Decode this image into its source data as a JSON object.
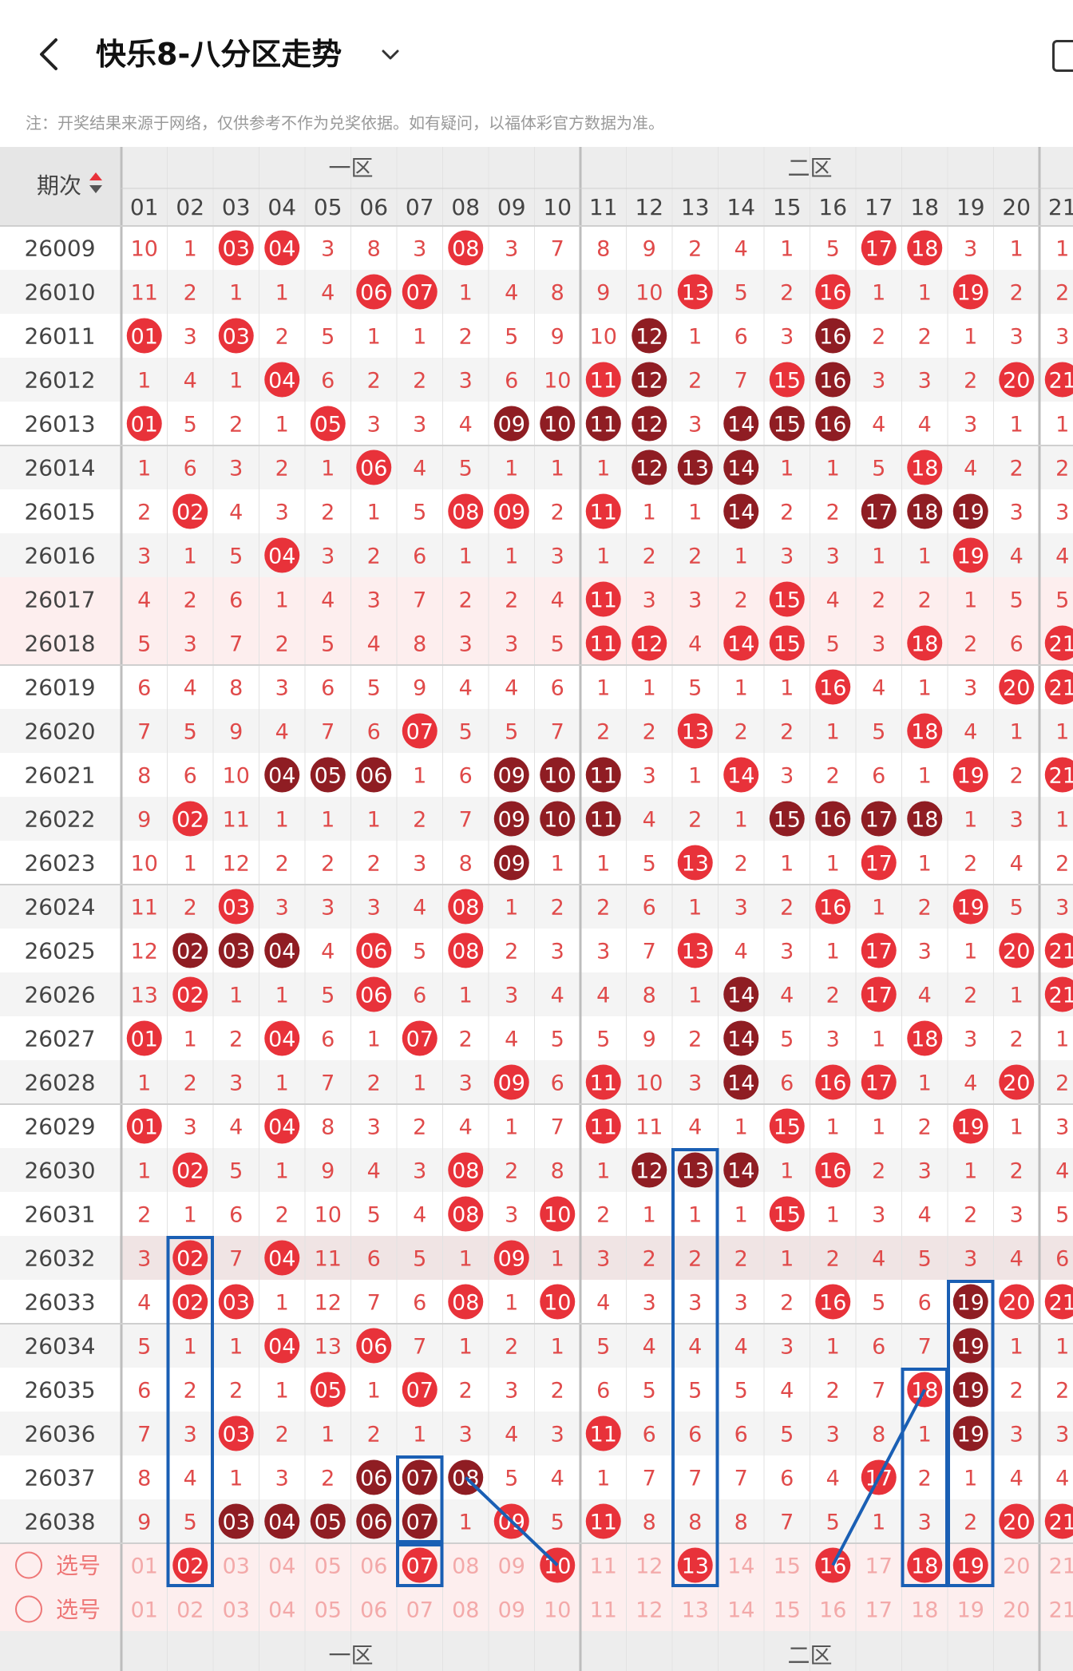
{
  "header": {
    "title": "快乐8-八分区走势",
    "back_icon": "chevron-left-icon",
    "dropdown_icon": "chevron-down-icon"
  },
  "note": "注：开奖结果来源于网络，仅供参考不作为兑奖依据。如有疑问，以福体彩官方数据为准。",
  "table": {
    "corner_label": "期次",
    "sort_icon": "sort-arrows-icon",
    "zones": [
      "一区",
      "二区"
    ],
    "columns": [
      "01",
      "02",
      "03",
      "04",
      "05",
      "06",
      "07",
      "08",
      "09",
      "10",
      "11",
      "12",
      "13",
      "14",
      "15",
      "16",
      "17",
      "18",
      "19",
      "20",
      "21"
    ],
    "select_label": "选号",
    "rows": [
      {
        "period": "26009",
        "cells": [
          10,
          1,
          "03",
          "04",
          3,
          8,
          3,
          "08",
          3,
          7,
          8,
          9,
          2,
          4,
          1,
          5,
          "17",
          "18",
          3,
          1,
          1
        ]
      },
      {
        "period": "26010",
        "cells": [
          11,
          2,
          1,
          1,
          4,
          "06",
          "07",
          1,
          4,
          8,
          9,
          10,
          "13",
          5,
          2,
          "16",
          1,
          1,
          "19",
          2,
          2
        ]
      },
      {
        "period": "26011",
        "cells": [
          "01",
          3,
          "03",
          2,
          5,
          1,
          1,
          2,
          5,
          9,
          10,
          "12",
          1,
          6,
          3,
          "16",
          2,
          2,
          1,
          3,
          3
        ]
      },
      {
        "period": "26012",
        "cells": [
          1,
          4,
          1,
          "04",
          6,
          2,
          2,
          3,
          6,
          10,
          "11",
          "12",
          2,
          7,
          "15",
          "16",
          3,
          3,
          2,
          "20",
          "21"
        ]
      },
      {
        "period": "26013",
        "cells": [
          "01",
          5,
          2,
          1,
          "05",
          3,
          3,
          4,
          "09",
          "10",
          "11",
          "12",
          3,
          "14",
          "15",
          "16",
          4,
          4,
          3,
          1,
          1
        ]
      },
      {
        "period": "26014",
        "cells": [
          1,
          6,
          3,
          2,
          1,
          "06",
          4,
          5,
          1,
          1,
          1,
          "12",
          "13",
          "14",
          1,
          1,
          5,
          "18",
          4,
          2,
          2
        ]
      },
      {
        "period": "26015",
        "cells": [
          2,
          "02",
          4,
          3,
          2,
          1,
          5,
          "08",
          "09",
          2,
          "11",
          1,
          1,
          "14",
          2,
          2,
          "17",
          "18",
          "19",
          3,
          3
        ]
      },
      {
        "period": "26016",
        "cells": [
          3,
          1,
          5,
          "04",
          3,
          2,
          6,
          1,
          1,
          3,
          1,
          2,
          2,
          1,
          3,
          3,
          1,
          1,
          "19",
          4,
          4
        ]
      },
      {
        "period": "26017",
        "cells": [
          4,
          2,
          6,
          1,
          4,
          3,
          7,
          2,
          2,
          4,
          "11",
          3,
          3,
          2,
          "15",
          4,
          2,
          2,
          1,
          5,
          5
        ]
      },
      {
        "period": "26018",
        "cells": [
          5,
          3,
          7,
          2,
          5,
          4,
          8,
          3,
          3,
          5,
          "11",
          "12",
          4,
          "14",
          "15",
          5,
          3,
          "18",
          2,
          6,
          "21"
        ]
      },
      {
        "period": "26019",
        "cells": [
          6,
          4,
          8,
          3,
          6,
          5,
          9,
          4,
          4,
          6,
          1,
          1,
          5,
          1,
          1,
          "16",
          4,
          1,
          3,
          "20",
          "21"
        ]
      },
      {
        "period": "26020",
        "cells": [
          7,
          5,
          9,
          4,
          7,
          6,
          "07",
          5,
          5,
          7,
          2,
          2,
          "13",
          2,
          2,
          1,
          5,
          "18",
          4,
          1,
          1
        ]
      },
      {
        "period": "26021",
        "cells": [
          8,
          6,
          10,
          "04",
          "05",
          "06",
          1,
          6,
          "09",
          "10",
          "11",
          3,
          1,
          "14",
          3,
          2,
          6,
          1,
          "19",
          2,
          "21"
        ]
      },
      {
        "period": "26022",
        "cells": [
          9,
          "02",
          11,
          1,
          1,
          1,
          2,
          7,
          "09",
          "10",
          "11",
          4,
          2,
          1,
          "15",
          "16",
          "17",
          "18",
          1,
          3,
          1
        ]
      },
      {
        "period": "26023",
        "cells": [
          10,
          1,
          12,
          2,
          2,
          2,
          3,
          8,
          "09",
          1,
          1,
          5,
          "13",
          2,
          1,
          1,
          "17",
          1,
          2,
          4,
          2
        ]
      },
      {
        "period": "26024",
        "cells": [
          11,
          2,
          "03",
          3,
          3,
          3,
          4,
          "08",
          1,
          2,
          2,
          6,
          1,
          3,
          2,
          "16",
          1,
          2,
          "19",
          5,
          3
        ]
      },
      {
        "period": "26025",
        "cells": [
          12,
          "02",
          "03",
          "04",
          4,
          "06",
          5,
          "08",
          2,
          3,
          3,
          7,
          "13",
          4,
          3,
          1,
          "17",
          3,
          1,
          "20",
          "21"
        ]
      },
      {
        "period": "26026",
        "cells": [
          13,
          "02",
          1,
          1,
          5,
          "06",
          6,
          1,
          3,
          4,
          4,
          8,
          1,
          "14",
          4,
          2,
          "17",
          4,
          2,
          1,
          "21"
        ]
      },
      {
        "period": "26027",
        "cells": [
          "01",
          1,
          2,
          "04",
          6,
          1,
          "07",
          2,
          4,
          5,
          5,
          9,
          2,
          "14",
          5,
          3,
          1,
          "18",
          3,
          2,
          1
        ]
      },
      {
        "period": "26028",
        "cells": [
          1,
          2,
          3,
          1,
          7,
          2,
          1,
          3,
          "09",
          6,
          "11",
          10,
          3,
          "14",
          6,
          "16",
          "17",
          1,
          4,
          "20",
          2
        ]
      },
      {
        "period": "26029",
        "cells": [
          "01",
          3,
          4,
          "04",
          8,
          3,
          2,
          4,
          1,
          7,
          "11",
          11,
          4,
          1,
          "15",
          1,
          1,
          2,
          "19",
          1,
          3
        ]
      },
      {
        "period": "26030",
        "cells": [
          1,
          "02",
          5,
          1,
          9,
          4,
          3,
          "08",
          2,
          8,
          1,
          "12",
          "13",
          "14",
          1,
          "16",
          2,
          3,
          1,
          2,
          4
        ]
      },
      {
        "period": "26031",
        "cells": [
          2,
          1,
          6,
          2,
          10,
          5,
          4,
          "08",
          3,
          "10",
          2,
          1,
          1,
          1,
          "15",
          1,
          3,
          4,
          2,
          3,
          5
        ]
      },
      {
        "period": "26032",
        "cells": [
          3,
          "02",
          7,
          "04",
          11,
          6,
          5,
          1,
          "09",
          1,
          3,
          2,
          2,
          2,
          1,
          2,
          4,
          5,
          3,
          4,
          6
        ]
      },
      {
        "period": "26033",
        "cells": [
          4,
          "02",
          "03",
          1,
          12,
          7,
          6,
          "08",
          1,
          "10",
          4,
          3,
          3,
          3,
          2,
          "16",
          5,
          6,
          "19",
          "20",
          "21"
        ]
      },
      {
        "period": "26034",
        "cells": [
          5,
          1,
          1,
          "04",
          13,
          "06",
          7,
          1,
          2,
          1,
          5,
          4,
          4,
          4,
          3,
          1,
          6,
          7,
          "19",
          1,
          1
        ]
      },
      {
        "period": "26035",
        "cells": [
          6,
          2,
          2,
          1,
          "05",
          1,
          "07",
          2,
          3,
          2,
          6,
          5,
          5,
          5,
          4,
          2,
          7,
          "18",
          "19",
          2,
          2
        ]
      },
      {
        "period": "26036",
        "cells": [
          7,
          3,
          "03",
          2,
          1,
          2,
          1,
          3,
          4,
          3,
          "11",
          6,
          6,
          6,
          5,
          3,
          8,
          1,
          "19",
          3,
          3
        ]
      },
      {
        "period": "26037",
        "cells": [
          8,
          4,
          1,
          3,
          2,
          "06",
          "07",
          "08",
          5,
          4,
          1,
          7,
          7,
          7,
          6,
          4,
          "17",
          2,
          1,
          4,
          4
        ]
      },
      {
        "period": "26038",
        "cells": [
          9,
          5,
          "03",
          "04",
          "05",
          "06",
          "07",
          1,
          "09",
          5,
          "11",
          8,
          8,
          8,
          7,
          5,
          1,
          3,
          2,
          "20",
          "21"
        ]
      }
    ],
    "dark_balls": [
      [
        "26011",
        "12"
      ],
      [
        "26011",
        "16"
      ],
      [
        "26012",
        "12"
      ],
      [
        "26012",
        "16"
      ],
      [
        "26013",
        "09"
      ],
      [
        "26013",
        "10"
      ],
      [
        "26013",
        "11"
      ],
      [
        "26013",
        "12"
      ],
      [
        "26013",
        "14"
      ],
      [
        "26013",
        "15"
      ],
      [
        "26013",
        "16"
      ],
      [
        "26014",
        "12"
      ],
      [
        "26014",
        "13"
      ],
      [
        "26014",
        "14"
      ],
      [
        "26015",
        "14"
      ],
      [
        "26015",
        "17"
      ],
      [
        "26015",
        "18"
      ],
      [
        "26015",
        "19"
      ],
      [
        "26021",
        "04"
      ],
      [
        "26021",
        "05"
      ],
      [
        "26021",
        "06"
      ],
      [
        "26021",
        "09"
      ],
      [
        "26021",
        "10"
      ],
      [
        "26021",
        "11"
      ],
      [
        "26022",
        "09"
      ],
      [
        "26022",
        "10"
      ],
      [
        "26022",
        "11"
      ],
      [
        "26022",
        "15"
      ],
      [
        "26022",
        "16"
      ],
      [
        "26022",
        "17"
      ],
      [
        "26022",
        "18"
      ],
      [
        "26023",
        "09"
      ],
      [
        "26025",
        "02"
      ],
      [
        "26025",
        "03"
      ],
      [
        "26025",
        "04"
      ],
      [
        "26026",
        "14"
      ],
      [
        "26027",
        "14"
      ],
      [
        "26028",
        "14"
      ],
      [
        "26030",
        "12"
      ],
      [
        "26030",
        "13"
      ],
      [
        "26030",
        "14"
      ],
      [
        "26033",
        "19"
      ],
      [
        "26034",
        "19"
      ],
      [
        "26035",
        "19"
      ],
      [
        "26036",
        "19"
      ],
      [
        "26037",
        "06"
      ],
      [
        "26037",
        "07"
      ],
      [
        "26037",
        "08"
      ],
      [
        "26038",
        "03"
      ],
      [
        "26038",
        "04"
      ],
      [
        "26038",
        "05"
      ],
      [
        "26038",
        "06"
      ],
      [
        "26038",
        "07"
      ]
    ],
    "selected_row_1": [
      "02",
      "07",
      "10",
      "13",
      "16",
      "18",
      "19"
    ],
    "colors": {
      "ball_red": "#e8323a",
      "ball_dark": "#8f1d23",
      "number_red": "#e04a4a",
      "box_blue": "#1a5fb4",
      "header_bg": "#ededed",
      "pink_band": "#fdeeee"
    }
  }
}
